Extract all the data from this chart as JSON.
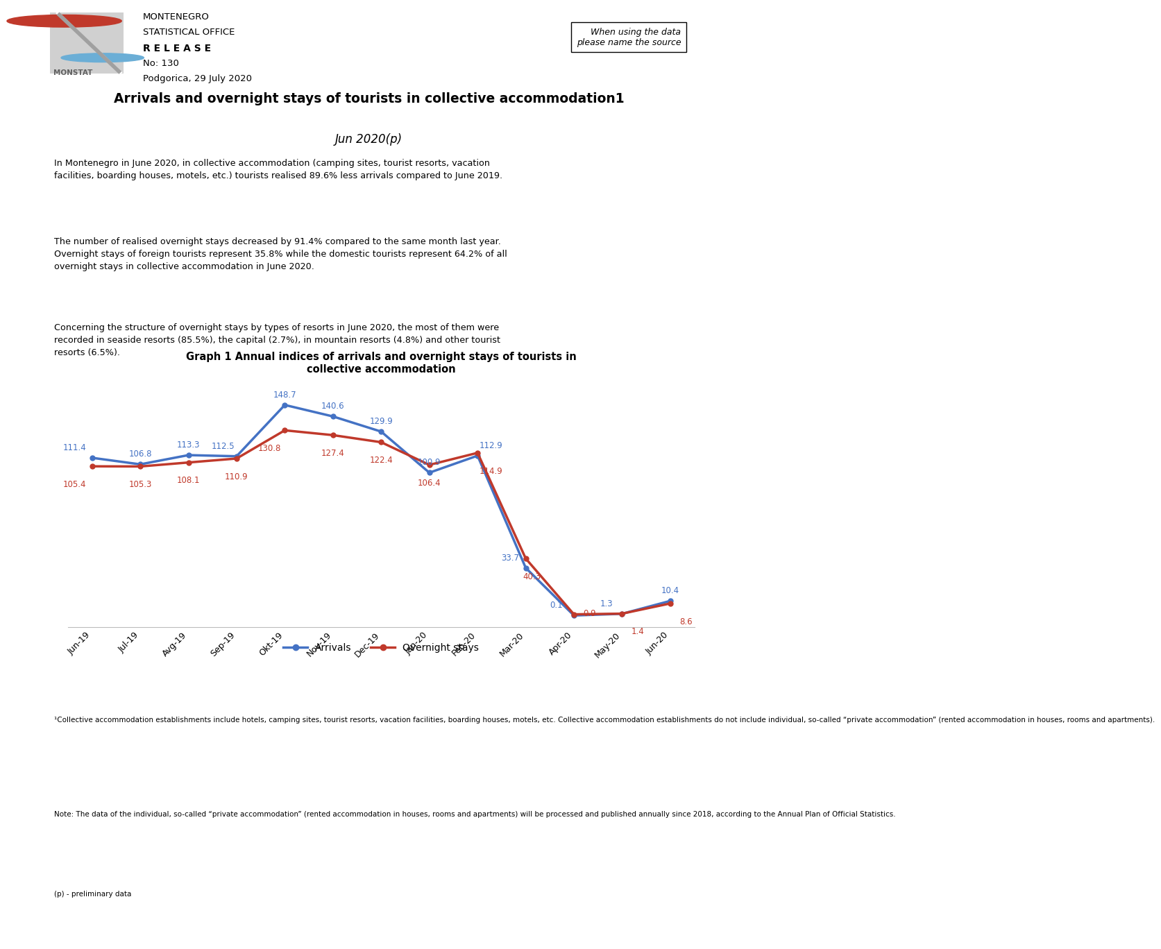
{
  "header": {
    "institution_line1": "MONTENEGRO",
    "institution_line2": "STATISTICAL OFFICE",
    "release": "R E L E A S E",
    "no": "No: 130",
    "date": "Podgorica, 29 July 2020",
    "watermark": "When using the data\nplease name the source"
  },
  "main_title": "Arrivals and overnight stays of tourists in collective accommodation",
  "superscript": "1",
  "subtitle": "Jun 2020",
  "subtitle_sup": "(p)",
  "paragraphs": [
    "In Montenegro in June 2020, in collective accommodation (camping sites, tourist resorts, vacation\nfacilities, boarding houses, motels, etc.) tourists realised 89.6% less arrivals compared to June 2019.",
    "The number of realised overnight stays decreased by 91.4% compared to the same month last year.\nOvernight stays of foreign tourists represent 35.8% while the domestic tourists represent 64.2% of all\novernight stays in collective accommodation in June 2020.",
    "Concerning the structure of overnight stays by types of resorts in June 2020, the most of them were\nrecorded in seaside resorts (85.5%), the capital (2.7%), in mountain resorts (4.8%) and other tourist\nresorts (6.5%)."
  ],
  "graph_title_line1": "Graph 1 Annual indices of arrivals and overnight stays of tourists in",
  "graph_title_line2": "collective accommodation",
  "x_labels": [
    "Jun-19",
    "Jul-19",
    "Avg-19",
    "Sep-19",
    "Okt-19",
    "Nov-19",
    "Dec-19",
    "Jan-20",
    "Feb-20",
    "Mar-20",
    "Apr-20",
    "May-20",
    "Jun-20"
  ],
  "arrivals": [
    111.4,
    106.8,
    113.3,
    112.5,
    148.7,
    140.6,
    129.9,
    100.9,
    112.9,
    33.7,
    0.1,
    1.3,
    10.4
  ],
  "overnight_stays": [
    105.4,
    105.3,
    108.1,
    110.9,
    130.8,
    127.4,
    122.4,
    106.4,
    114.9,
    40.3,
    0.9,
    1.4,
    8.6
  ],
  "arrivals_color": "#4472C4",
  "overnight_color": "#C0392B",
  "legend_arrivals": "Arrivals",
  "legend_overnight": "Overnight stays",
  "footnote1": "¹Collective accommodation establishments include hotels, camping sites, tourist resorts, vacation facilities, boarding houses, motels, etc. Collective accommodation establishments do not include individual, so-called “private accommodation” (rented accommodation in houses, rooms and apartments).",
  "footnote2": "Note: The data of the individual, so-called “private accommodation” (rented accommodation in houses, rooms and apartments) will be processed and published annually since 2018, according to the Annual Plan of Official Statistics.",
  "footnote3": "(p) - preliminary data",
  "line_color": "#808080",
  "bg_color": "#ffffff"
}
